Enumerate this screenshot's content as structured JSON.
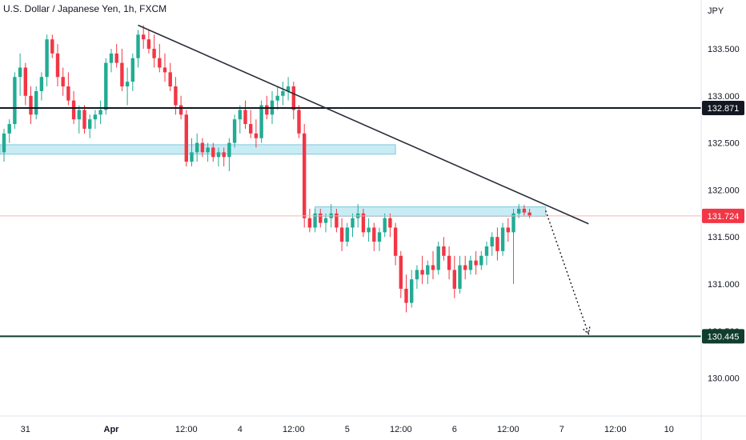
{
  "header": {
    "title": "U.S. Dollar / Japanese Yen, 1h, FXCM",
    "unit": "JPY"
  },
  "chart_data": {
    "type": "candlestick",
    "title": "U.S. Dollar / Japanese Yen, 1h, FXCM",
    "ylabel": "JPY",
    "ylim": [
      129.7,
      133.95
    ],
    "y_ticks": [
      {
        "value": 130.0,
        "label": "130.000"
      },
      {
        "value": 130.5,
        "label": "130.500"
      },
      {
        "value": 131.0,
        "label": "131.000"
      },
      {
        "value": 131.5,
        "label": "131.500"
      },
      {
        "value": 132.0,
        "label": "132.000"
      },
      {
        "value": 132.5,
        "label": "132.500"
      },
      {
        "value": 133.0,
        "label": "133.000"
      },
      {
        "value": 133.5,
        "label": "133.500"
      }
    ],
    "x_ticks": [
      {
        "index": 4,
        "label": "31"
      },
      {
        "index": 20,
        "label": "Apr",
        "bold": true
      },
      {
        "index": 34,
        "label": "12:00"
      },
      {
        "index": 44,
        "label": "4"
      },
      {
        "index": 54,
        "label": "12:00"
      },
      {
        "index": 64,
        "label": "5"
      },
      {
        "index": 74,
        "label": "12:00"
      },
      {
        "index": 84,
        "label": "6"
      },
      {
        "index": 94,
        "label": "12:00"
      },
      {
        "index": 104,
        "label": "7"
      },
      {
        "index": 114,
        "label": "12:00"
      },
      {
        "index": 124,
        "label": "10"
      }
    ],
    "up_color": "#22ab94",
    "down_color": "#f23645",
    "candles": [
      [
        132.4,
        132.65,
        132.3,
        132.6
      ],
      [
        132.6,
        132.75,
        132.5,
        132.7
      ],
      [
        132.7,
        133.25,
        132.65,
        133.2
      ],
      [
        133.2,
        133.45,
        133.0,
        133.3
      ],
      [
        133.3,
        133.35,
        132.9,
        133.0
      ],
      [
        133.0,
        133.1,
        132.7,
        132.8
      ],
      [
        132.8,
        133.1,
        132.75,
        133.05
      ],
      [
        133.05,
        133.25,
        132.95,
        133.2
      ],
      [
        133.2,
        133.65,
        133.1,
        133.6
      ],
      [
        133.6,
        133.65,
        133.4,
        133.45
      ],
      [
        133.45,
        133.55,
        133.1,
        133.2
      ],
      [
        133.2,
        133.3,
        133.0,
        133.1
      ],
      [
        133.1,
        133.25,
        132.9,
        132.95
      ],
      [
        132.95,
        133.05,
        132.7,
        132.75
      ],
      [
        132.75,
        132.9,
        132.6,
        132.85
      ],
      [
        132.85,
        132.9,
        132.6,
        132.65
      ],
      [
        132.65,
        132.8,
        132.55,
        132.75
      ],
      [
        132.75,
        132.85,
        132.65,
        132.8
      ],
      [
        132.8,
        132.95,
        132.7,
        132.85
      ],
      [
        132.85,
        133.4,
        132.8,
        133.35
      ],
      [
        133.35,
        133.5,
        133.25,
        133.45
      ],
      [
        133.45,
        133.55,
        133.3,
        133.35
      ],
      [
        133.35,
        133.5,
        133.05,
        133.1
      ],
      [
        133.1,
        133.3,
        132.9,
        133.15
      ],
      [
        133.15,
        133.45,
        133.05,
        133.4
      ],
      [
        133.4,
        133.7,
        133.3,
        133.65
      ],
      [
        133.65,
        133.75,
        133.5,
        133.6
      ],
      [
        133.6,
        133.7,
        133.45,
        133.5
      ],
      [
        133.5,
        133.65,
        133.3,
        133.4
      ],
      [
        133.4,
        133.55,
        133.25,
        133.3
      ],
      [
        133.3,
        133.45,
        133.15,
        133.25
      ],
      [
        133.25,
        133.35,
        133.05,
        133.1
      ],
      [
        133.1,
        133.2,
        132.8,
        132.9
      ],
      [
        132.9,
        133.0,
        132.75,
        132.8
      ],
      [
        132.8,
        132.85,
        132.25,
        132.3
      ],
      [
        132.3,
        132.55,
        132.25,
        132.4
      ],
      [
        132.4,
        132.6,
        132.3,
        132.5
      ],
      [
        132.5,
        132.55,
        132.35,
        132.4
      ],
      [
        132.4,
        132.5,
        132.3,
        132.45
      ],
      [
        132.45,
        132.5,
        132.3,
        132.35
      ],
      [
        132.35,
        132.45,
        132.25,
        132.4
      ],
      [
        132.4,
        132.45,
        132.25,
        132.35
      ],
      [
        132.35,
        132.55,
        132.2,
        132.5
      ],
      [
        132.5,
        132.8,
        132.45,
        132.75
      ],
      [
        132.75,
        132.9,
        132.6,
        132.85
      ],
      [
        132.85,
        132.95,
        132.65,
        132.7
      ],
      [
        132.7,
        132.85,
        132.55,
        132.6
      ],
      [
        132.6,
        132.75,
        132.45,
        132.55
      ],
      [
        132.55,
        132.95,
        132.5,
        132.9
      ],
      [
        132.9,
        133.0,
        132.75,
        132.8
      ],
      [
        132.8,
        133.05,
        132.7,
        132.95
      ],
      [
        132.95,
        133.1,
        132.85,
        133.0
      ],
      [
        133.0,
        133.15,
        132.9,
        133.05
      ],
      [
        133.05,
        133.2,
        132.95,
        133.1
      ],
      [
        133.1,
        133.15,
        132.75,
        132.85
      ],
      [
        132.85,
        132.9,
        132.55,
        132.6
      ],
      [
        132.6,
        132.7,
        131.6,
        131.7
      ],
      [
        131.7,
        131.8,
        131.55,
        131.6
      ],
      [
        131.6,
        131.8,
        131.55,
        131.75
      ],
      [
        131.75,
        131.8,
        131.6,
        131.65
      ],
      [
        131.65,
        131.75,
        131.55,
        131.7
      ],
      [
        131.7,
        131.85,
        131.6,
        131.75
      ],
      [
        131.75,
        131.8,
        131.55,
        131.6
      ],
      [
        131.6,
        131.7,
        131.35,
        131.45
      ],
      [
        131.45,
        131.65,
        131.4,
        131.6
      ],
      [
        131.6,
        131.75,
        131.5,
        131.7
      ],
      [
        131.7,
        131.85,
        131.6,
        131.75
      ],
      [
        131.75,
        131.8,
        131.5,
        131.55
      ],
      [
        131.55,
        131.7,
        131.45,
        131.6
      ],
      [
        131.6,
        131.65,
        131.35,
        131.45
      ],
      [
        131.45,
        131.6,
        131.35,
        131.55
      ],
      [
        131.55,
        131.75,
        131.5,
        131.7
      ],
      [
        131.7,
        131.75,
        131.5,
        131.6
      ],
      [
        131.6,
        131.65,
        131.2,
        131.3
      ],
      [
        131.3,
        131.35,
        130.85,
        130.95
      ],
      [
        130.95,
        131.1,
        130.7,
        130.8
      ],
      [
        130.8,
        131.15,
        130.75,
        131.05
      ],
      [
        131.05,
        131.2,
        130.95,
        131.15
      ],
      [
        131.15,
        131.3,
        131.0,
        131.1
      ],
      [
        131.1,
        131.25,
        131.0,
        131.2
      ],
      [
        131.2,
        131.35,
        131.05,
        131.15
      ],
      [
        131.15,
        131.45,
        131.1,
        131.4
      ],
      [
        131.4,
        131.5,
        131.25,
        131.3
      ],
      [
        131.3,
        131.4,
        131.05,
        131.15
      ],
      [
        131.15,
        131.3,
        130.85,
        130.95
      ],
      [
        130.95,
        131.3,
        130.9,
        131.2
      ],
      [
        131.2,
        131.3,
        131.05,
        131.15
      ],
      [
        131.15,
        131.3,
        131.1,
        131.25
      ],
      [
        131.25,
        131.35,
        131.1,
        131.2
      ],
      [
        131.2,
        131.35,
        131.15,
        131.3
      ],
      [
        131.3,
        131.45,
        131.2,
        131.4
      ],
      [
        131.4,
        131.55,
        131.3,
        131.5
      ],
      [
        131.5,
        131.6,
        131.25,
        131.35
      ],
      [
        131.35,
        131.65,
        131.3,
        131.6
      ],
      [
        131.6,
        131.7,
        131.45,
        131.55
      ],
      [
        131.55,
        131.8,
        131.0,
        131.75
      ],
      [
        131.75,
        131.85,
        131.7,
        131.8
      ],
      [
        131.8,
        131.84,
        131.72,
        131.76
      ],
      [
        131.76,
        131.8,
        131.7,
        131.72
      ]
    ],
    "drawings": {
      "trendline": {
        "from": {
          "index": 25,
          "price": 133.75
        },
        "to": {
          "index": 109,
          "price": 131.64
        }
      },
      "projection": {
        "from": {
          "index": 101,
          "price": 131.78
        },
        "to": {
          "index": 109,
          "price": 130.47
        }
      },
      "zones": [
        {
          "from_index": -1,
          "to_index": 73,
          "top": 132.48,
          "bottom": 132.38
        },
        {
          "from_index": 58,
          "to_index": 101,
          "top": 131.82,
          "bottom": 131.72
        }
      ],
      "hlines": [
        {
          "price": 132.871,
          "label": "132.871",
          "color": "#131722"
        },
        {
          "price": 130.445,
          "label": "130.445",
          "color": "#0f3d2e"
        }
      ],
      "last_price": {
        "price": 131.724,
        "label": "131.724",
        "color": "#f23645"
      }
    }
  }
}
